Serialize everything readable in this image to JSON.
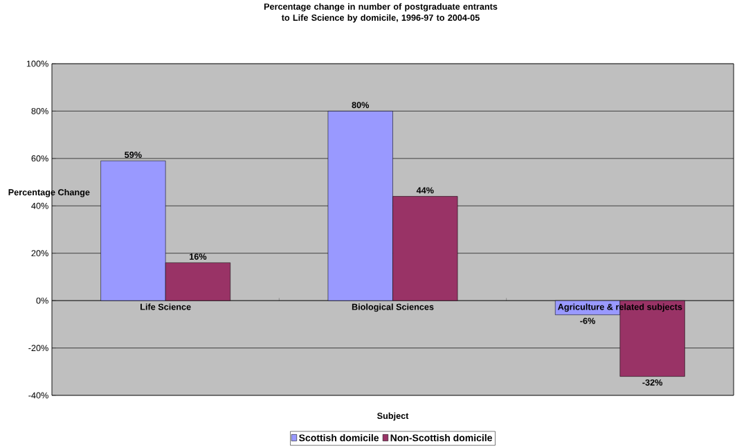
{
  "chart_data": {
    "type": "bar",
    "title": "Percentage change in number of postgraduate entrants to Life Science  by domicile, 1996-97 to 2004-05",
    "xlabel": "Subject",
    "ylabel": "Percentage Change",
    "categories": [
      "Life Science",
      "Biological Sciences",
      "Agriculture & related subjects"
    ],
    "series": [
      {
        "name": "Scottish domicile",
        "color": "#9999ff",
        "values": [
          59,
          80,
          -6
        ],
        "value_labels": [
          "59%",
          "80%",
          "-6%"
        ]
      },
      {
        "name": "Non-Scottish domicile",
        "color": "#993366",
        "values": [
          16,
          44,
          -32
        ],
        "value_labels": [
          "16%",
          "44%",
          "-32%"
        ]
      }
    ],
    "ylim": [
      -40,
      100
    ],
    "yticks": [
      {
        "value": -40,
        "label": "-40%"
      },
      {
        "value": -20,
        "label": "-20%"
      },
      {
        "value": 0,
        "label": "0%"
      },
      {
        "value": 20,
        "label": "20%"
      },
      {
        "value": 40,
        "label": "40%"
      },
      {
        "value": 60,
        "label": "60%"
      },
      {
        "value": 80,
        "label": "80%"
      },
      {
        "value": 100,
        "label": "100%"
      }
    ],
    "grid": "y",
    "legend": "bottom"
  }
}
